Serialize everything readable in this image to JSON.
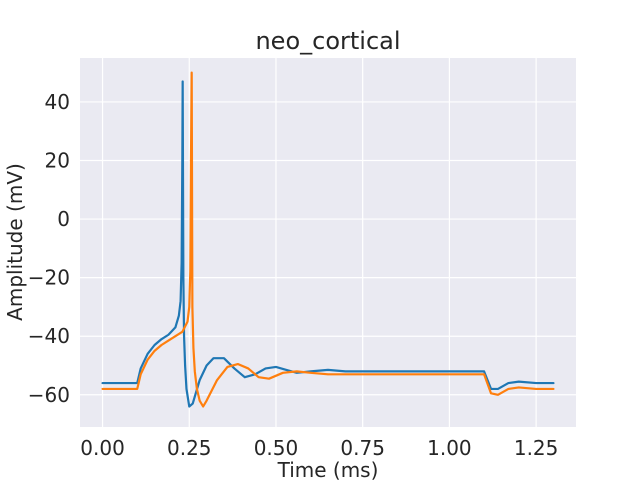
{
  "chart_data": {
    "type": "line",
    "title": "neo_cortical",
    "xlabel": "Time (ms)",
    "ylabel": "Amplitude (mV)",
    "xlim": [
      -0.065,
      1.365
    ],
    "ylim": [
      -71,
      55
    ],
    "x_ticks": [
      0.0,
      0.25,
      0.5,
      0.75,
      1.0,
      1.25
    ],
    "x_tick_labels": [
      "0.00",
      "0.25",
      "0.50",
      "0.75",
      "1.00",
      "1.25"
    ],
    "y_ticks": [
      -60,
      -40,
      -20,
      0,
      20,
      40
    ],
    "y_tick_labels": [
      "−60",
      "−40",
      "−20",
      "0",
      "20",
      "40"
    ],
    "grid": true,
    "colors": {
      "background": "#eaeaf2",
      "grid": "#ffffff",
      "text": "#262626"
    },
    "series": [
      {
        "color": "#1f77b4",
        "x": [
          0.0,
          0.1,
          0.11,
          0.13,
          0.15,
          0.17,
          0.19,
          0.21,
          0.22,
          0.225,
          0.228,
          0.23,
          0.231,
          0.233,
          0.235,
          0.238,
          0.242,
          0.25,
          0.26,
          0.27,
          0.28,
          0.3,
          0.32,
          0.35,
          0.38,
          0.41,
          0.44,
          0.47,
          0.5,
          0.53,
          0.56,
          0.6,
          0.65,
          0.7,
          0.8,
          1.0,
          1.1,
          1.12,
          1.14,
          1.17,
          1.2,
          1.25,
          1.3
        ],
        "y": [
          -56,
          -56,
          -51,
          -46,
          -43,
          -41,
          -39.5,
          -37,
          -33,
          -28,
          -15,
          20,
          47,
          -20,
          -40,
          -50,
          -58,
          -64,
          -63,
          -59,
          -55,
          -50,
          -47.5,
          -47.5,
          -51,
          -54,
          -53,
          -51,
          -50.5,
          -51.5,
          -52.5,
          -52,
          -51.5,
          -52,
          -52,
          -52,
          -52,
          -58,
          -58,
          -56,
          -55.5,
          -56,
          -56
        ]
      },
      {
        "color": "#ff7f0e",
        "x": [
          0.0,
          0.1,
          0.11,
          0.13,
          0.15,
          0.17,
          0.19,
          0.21,
          0.23,
          0.245,
          0.25,
          0.253,
          0.255,
          0.257,
          0.259,
          0.262,
          0.266,
          0.272,
          0.28,
          0.29,
          0.3,
          0.33,
          0.36,
          0.39,
          0.42,
          0.45,
          0.48,
          0.52,
          0.56,
          0.6,
          0.65,
          0.7,
          0.8,
          1.0,
          1.1,
          1.12,
          1.14,
          1.17,
          1.2,
          1.25,
          1.3
        ],
        "y": [
          -58,
          -58,
          -53,
          -48,
          -45,
          -43,
          -41.5,
          -40,
          -38.5,
          -35,
          -30,
          -18,
          20,
          50,
          -30,
          -44,
          -52,
          -58,
          -62,
          -64,
          -62,
          -55,
          -50.5,
          -49.5,
          -51,
          -54,
          -54.5,
          -52.5,
          -52,
          -52.5,
          -53,
          -53,
          -53,
          -53,
          -53,
          -59.5,
          -60,
          -58,
          -57.5,
          -58,
          -58
        ]
      }
    ]
  }
}
